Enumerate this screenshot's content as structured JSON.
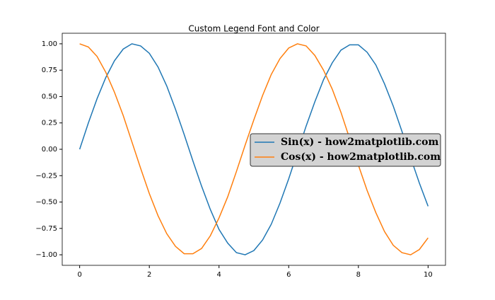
{
  "chart_data": {
    "type": "line",
    "title": "Custom Legend Font and Color",
    "x": [
      0,
      0.25,
      0.5,
      0.75,
      1,
      1.25,
      1.5,
      1.75,
      2,
      2.25,
      2.5,
      2.75,
      3,
      3.25,
      3.5,
      3.75,
      4,
      4.25,
      4.5,
      4.75,
      5,
      5.25,
      5.5,
      5.75,
      6,
      6.25,
      6.5,
      6.75,
      7,
      7.25,
      7.5,
      7.75,
      8,
      8.25,
      8.5,
      8.75,
      9,
      9.25,
      9.5,
      9.75,
      10
    ],
    "series": [
      {
        "name": "Sin(x) - how2matplotlib.com",
        "color": "#1f77b4",
        "values": [
          0,
          0.25,
          0.48,
          0.68,
          0.84,
          0.95,
          1.0,
          0.98,
          0.91,
          0.78,
          0.6,
          0.38,
          0.14,
          -0.11,
          -0.35,
          -0.57,
          -0.76,
          -0.89,
          -0.98,
          -1.0,
          -0.96,
          -0.86,
          -0.71,
          -0.51,
          -0.28,
          -0.03,
          0.22,
          0.45,
          0.66,
          0.82,
          0.94,
          0.99,
          0.99,
          0.92,
          0.8,
          0.62,
          0.41,
          0.17,
          -0.08,
          -0.32,
          -0.54
        ]
      },
      {
        "name": "Cos(x) - how2matplotlib.com",
        "color": "#ff7f0e",
        "values": [
          1,
          0.97,
          0.88,
          0.73,
          0.54,
          0.32,
          0.07,
          -0.18,
          -0.42,
          -0.63,
          -0.8,
          -0.92,
          -0.99,
          -0.99,
          -0.94,
          -0.82,
          -0.65,
          -0.45,
          -0.21,
          0.04,
          0.28,
          0.51,
          0.71,
          0.86,
          0.96,
          1.0,
          0.98,
          0.89,
          0.75,
          0.57,
          0.35,
          0.1,
          -0.15,
          -0.39,
          -0.6,
          -0.78,
          -0.91,
          -0.98,
          -1.0,
          -0.95,
          -0.84
        ]
      }
    ],
    "xlim": [
      -0.5,
      10.5
    ],
    "xticks": [
      0,
      2,
      4,
      6,
      8,
      10
    ],
    "ylim": [
      -1.1,
      1.1
    ],
    "yticks": [
      {
        "value": -1,
        "label": "−1.00"
      },
      {
        "value": -0.75,
        "label": "−0.75"
      },
      {
        "value": -0.5,
        "label": "−0.50"
      },
      {
        "value": -0.25,
        "label": "−0.25"
      },
      {
        "value": 0,
        "label": "0.00"
      },
      {
        "value": 0.25,
        "label": "0.25"
      },
      {
        "value": 0.5,
        "label": "0.50"
      },
      {
        "value": 0.75,
        "label": "0.75"
      },
      {
        "value": 1,
        "label": "1.00"
      }
    ],
    "grid": false,
    "legend": "center right",
    "legend_background": "#d3d3d3"
  }
}
